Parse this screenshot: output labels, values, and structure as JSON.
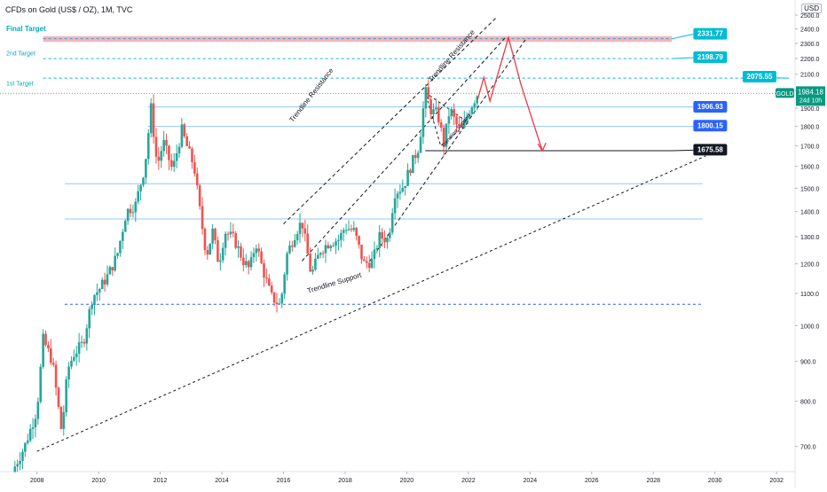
{
  "header": {
    "title": "CFDs on Gold (US$ / OZ), 1M, TVC",
    "currency": "USD"
  },
  "chart_data": {
    "type": "candlestick",
    "symbol": "GOLD",
    "last_price": 1984.18,
    "countdown": "24d 10h",
    "x_ticks": [
      "2008",
      "2010",
      "2012",
      "2014",
      "2016",
      "2018",
      "2020",
      "2022",
      "2024",
      "2026",
      "2028",
      "2030",
      "2032"
    ],
    "y_ticks": [
      700,
      800,
      900,
      1000,
      1100,
      1200,
      1300,
      1400,
      1500,
      1600,
      1700,
      1800,
      1900,
      2000,
      2100,
      2200,
      2300,
      2400,
      2500
    ],
    "ylim": [
      650,
      2520
    ],
    "y_scale": "log",
    "price_path": [
      [
        2007.2,
        650
      ],
      [
        2007.6,
        700
      ],
      [
        2008.0,
        780
      ],
      [
        2008.2,
        960
      ],
      [
        2008.5,
        900
      ],
      [
        2008.8,
        730
      ],
      [
        2009.0,
        880
      ],
      [
        2009.2,
        920
      ],
      [
        2009.5,
        950
      ],
      [
        2009.8,
        1090
      ],
      [
        2010.0,
        1110
      ],
      [
        2010.3,
        1160
      ],
      [
        2010.6,
        1230
      ],
      [
        2010.9,
        1400
      ],
      [
        2011.2,
        1430
      ],
      [
        2011.5,
        1600
      ],
      [
        2011.7,
        1900
      ],
      [
        2011.9,
        1600
      ],
      [
        2012.1,
        1720
      ],
      [
        2012.4,
        1580
      ],
      [
        2012.7,
        1780
      ],
      [
        2012.9,
        1680
      ],
      [
        2013.1,
        1600
      ],
      [
        2013.3,
        1390
      ],
      [
        2013.5,
        1230
      ],
      [
        2013.7,
        1320
      ],
      [
        2013.9,
        1200
      ],
      [
        2014.1,
        1320
      ],
      [
        2014.4,
        1290
      ],
      [
        2014.7,
        1210
      ],
      [
        2014.9,
        1180
      ],
      [
        2015.1,
        1280
      ],
      [
        2015.3,
        1190
      ],
      [
        2015.6,
        1090
      ],
      [
        2015.9,
        1060
      ],
      [
        2016.1,
        1230
      ],
      [
        2016.4,
        1320
      ],
      [
        2016.6,
        1360
      ],
      [
        2016.9,
        1160
      ],
      [
        2017.2,
        1250
      ],
      [
        2017.5,
        1280
      ],
      [
        2017.8,
        1290
      ],
      [
        2018.0,
        1340
      ],
      [
        2018.3,
        1320
      ],
      [
        2018.6,
        1200
      ],
      [
        2018.9,
        1210
      ],
      [
        2019.1,
        1300
      ],
      [
        2019.4,
        1290
      ],
      [
        2019.6,
        1480
      ],
      [
        2019.9,
        1510
      ],
      [
        2020.1,
        1590
      ],
      [
        2020.4,
        1700
      ],
      [
        2020.6,
        2000
      ],
      [
        2020.8,
        1880
      ],
      [
        2021.0,
        1870
      ],
      [
        2021.2,
        1710
      ],
      [
        2021.4,
        1900
      ],
      [
        2021.6,
        1810
      ],
      [
        2021.8,
        1780
      ],
      [
        2022.0,
        1880
      ],
      [
        2022.2,
        1950
      ],
      [
        2022.3,
        1984
      ]
    ],
    "levels": [
      {
        "label": "2331.77",
        "kind": "final_target_zone",
        "value": 2331.77,
        "range": [
          2310,
          2350
        ],
        "color": "#00bcd4"
      },
      {
        "label": "2198.79",
        "kind": "target",
        "value": 2198.79,
        "color": "#00bcd4"
      },
      {
        "label": "2075.55",
        "kind": "target",
        "value": 2075.55,
        "color": "#00bcd4"
      },
      {
        "label": "1906.93",
        "kind": "resistance",
        "value": 1906.93,
        "color": "#2962ff"
      },
      {
        "label": "1800.15",
        "kind": "support",
        "value": 1800.15,
        "color": "#2962ff"
      },
      {
        "label": "1675.58",
        "kind": "target_low",
        "value": 1675.58,
        "color": "#131722"
      }
    ],
    "extra_lines": [
      1520,
      1370,
      1065
    ],
    "annotations": [
      {
        "text": "Final Target"
      },
      {
        "text": "2nd Target"
      },
      {
        "text": "1st Target"
      },
      {
        "text": "Trendline Resistance"
      },
      {
        "text": "Trendline Resistance"
      },
      {
        "text": "Trendline Support"
      },
      {
        "text": "Trendline Support"
      }
    ],
    "projection_path": [
      [
        2022.3,
        1950
      ],
      [
        2022.5,
        2080
      ],
      [
        2022.7,
        1940
      ],
      [
        2023.3,
        2340
      ],
      [
        2023.7,
        2040
      ],
      [
        2024.4,
        1675
      ]
    ],
    "colors": {
      "up": "#26a69a",
      "down": "#ef5350",
      "target": "#00bcd4",
      "level": "#2962ff",
      "projection": "#f23645",
      "last": "#089981"
    }
  }
}
